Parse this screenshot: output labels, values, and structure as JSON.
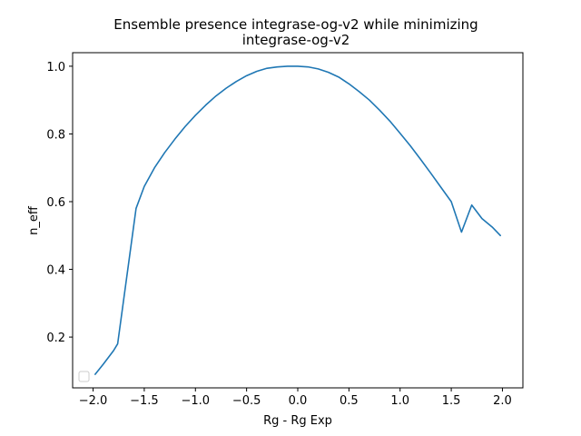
{
  "chart_data": {
    "type": "line",
    "title_line1": "Ensemble presence integrase-og-v2 while minimizing",
    "title_line2": "integrase-og-v2",
    "xlabel": "Rg - Rg Exp",
    "ylabel": "n_eff",
    "xlim": [
      -2.2,
      2.2
    ],
    "ylim": [
      0.05,
      1.04
    ],
    "xticks": [
      -2.0,
      -1.5,
      -1.0,
      -0.5,
      0.0,
      0.5,
      1.0,
      1.5,
      2.0
    ],
    "xtick_labels": [
      "−2.0",
      "−1.5",
      "−1.0",
      "−0.5",
      "0.0",
      "0.5",
      "1.0",
      "1.5",
      "2.0"
    ],
    "yticks": [
      0.2,
      0.4,
      0.6,
      0.8,
      1.0
    ],
    "ytick_labels": [
      "0.2",
      "0.4",
      "0.6",
      "0.8",
      "1.0"
    ],
    "grid": false,
    "legend": "lower-left (empty)",
    "series": [
      {
        "color": "#1f77b4",
        "x": [
          -1.98,
          -1.9,
          -1.8,
          -1.76,
          -1.58,
          -1.5,
          -1.4,
          -1.3,
          -1.2,
          -1.1,
          -1.0,
          -0.9,
          -0.8,
          -0.7,
          -0.6,
          -0.5,
          -0.4,
          -0.3,
          -0.2,
          -0.1,
          0.0,
          0.1,
          0.2,
          0.3,
          0.4,
          0.5,
          0.6,
          0.7,
          0.8,
          0.9,
          1.0,
          1.1,
          1.2,
          1.3,
          1.4,
          1.5,
          1.6,
          1.7,
          1.8,
          1.9,
          1.98
        ],
        "y": [
          0.09,
          0.12,
          0.16,
          0.18,
          0.58,
          0.645,
          0.7,
          0.745,
          0.785,
          0.822,
          0.855,
          0.885,
          0.912,
          0.935,
          0.955,
          0.972,
          0.985,
          0.994,
          0.998,
          1.0,
          1.0,
          0.998,
          0.992,
          0.982,
          0.968,
          0.948,
          0.925,
          0.9,
          0.87,
          0.838,
          0.802,
          0.765,
          0.725,
          0.684,
          0.642,
          0.6,
          0.51,
          0.59,
          0.55,
          0.525,
          0.5
        ]
      }
    ]
  }
}
